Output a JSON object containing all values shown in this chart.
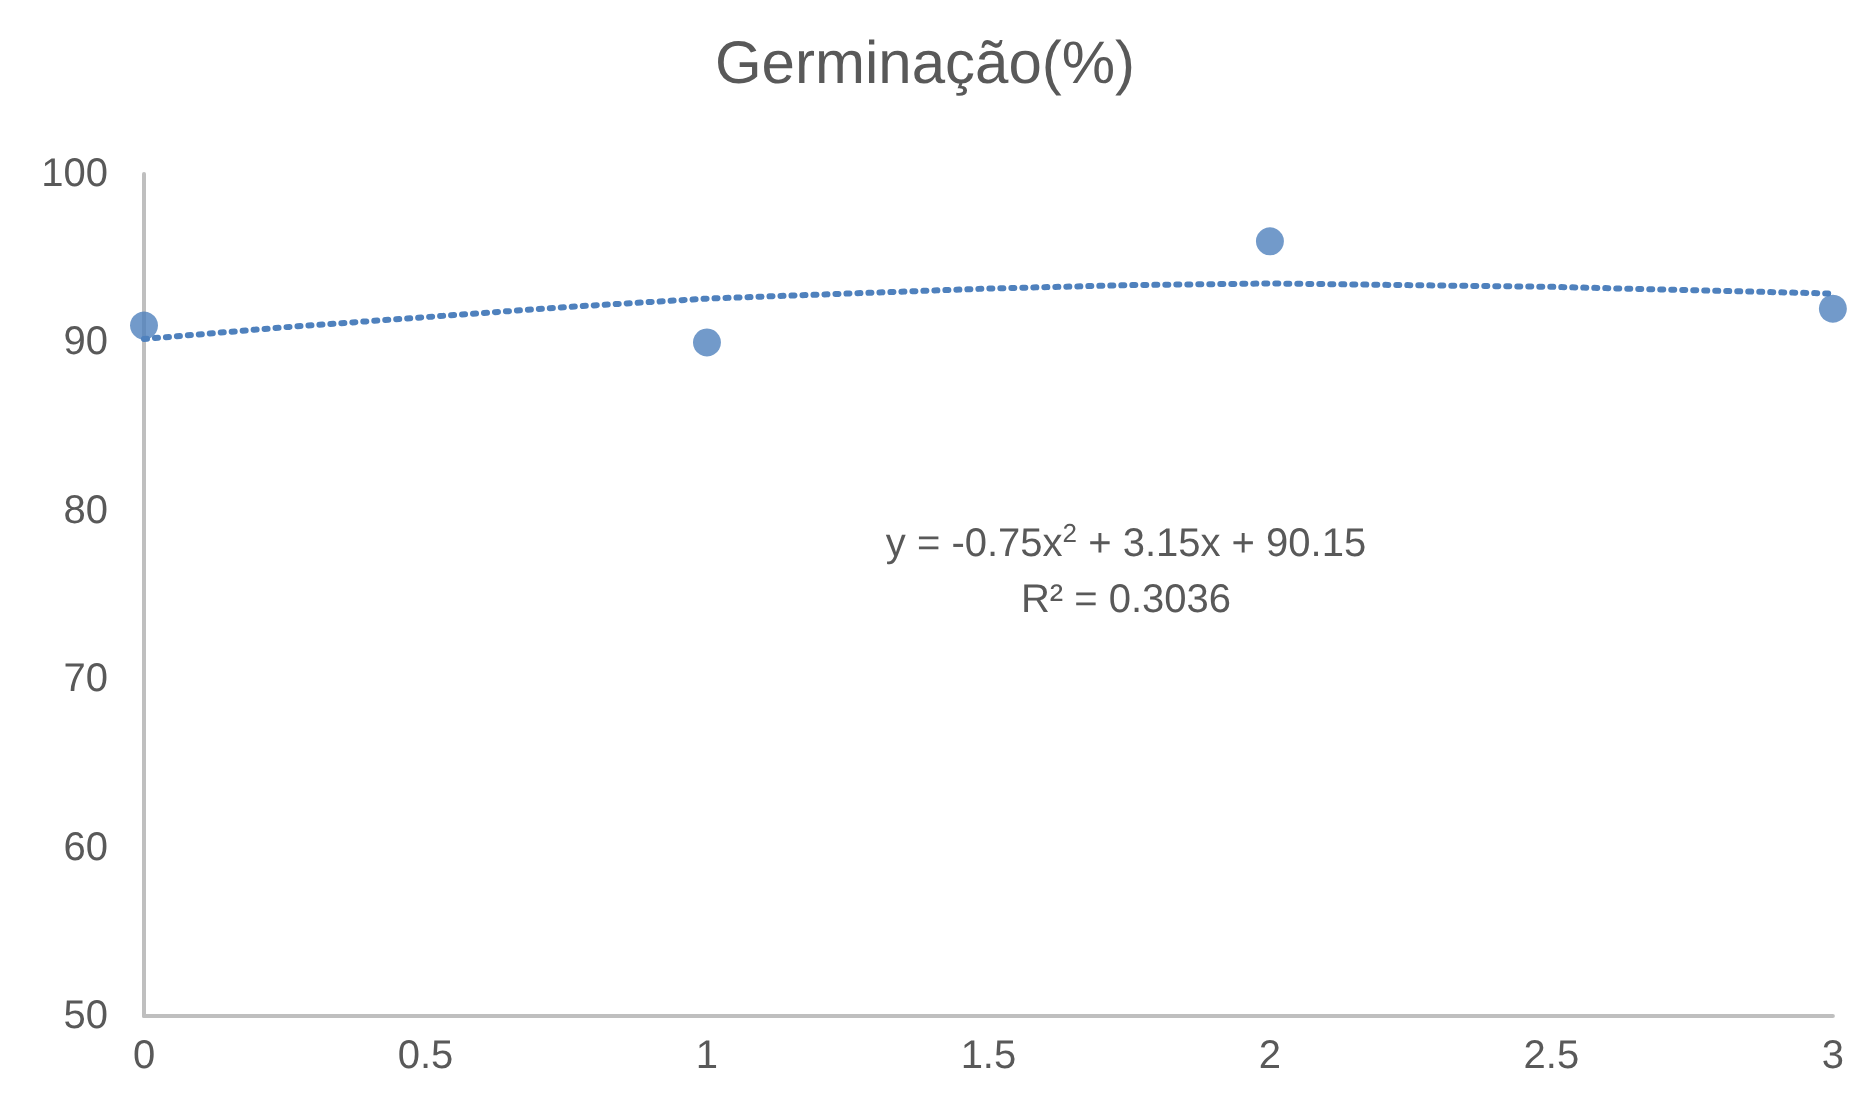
{
  "chart_data": {
    "type": "scatter",
    "title": "Germinação(%)",
    "x": [
      0,
      1,
      2,
      3
    ],
    "series": [
      {
        "type": "scatter",
        "color": "#4f81bd",
        "marker": "circle",
        "values": [
          91,
          90,
          96,
          92
        ]
      },
      {
        "type": "line",
        "color": "#4f81bd",
        "line_style": "dotted",
        "marker": "none",
        "x": [
          0,
          0.25,
          0.5,
          0.75,
          1,
          1.25,
          1.5,
          1.75,
          2,
          2.25,
          2.5,
          2.75,
          3
        ],
        "values": [
          90.2,
          90.9,
          91.5,
          92.1,
          92.6,
          92.9,
          93.2,
          93.4,
          93.5,
          93.4,
          93.3,
          93.1,
          92.9
        ]
      }
    ],
    "xlim": [
      0,
      3
    ],
    "xticks": [
      0,
      0.5,
      1,
      1.5,
      2,
      2.5,
      3
    ],
    "ylim": [
      50,
      100
    ],
    "yticks": [
      50,
      60,
      70,
      80,
      90,
      100
    ],
    "grid": false,
    "annotations": [
      "y = -0.75x$^{2}$ + 3.15x + 90.15",
      "R² = 0.3036"
    ]
  }
}
